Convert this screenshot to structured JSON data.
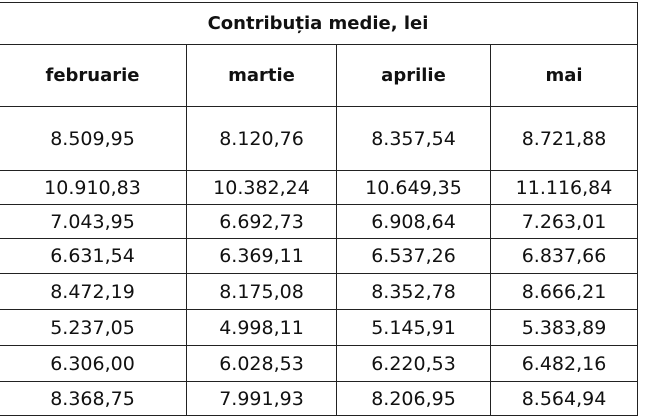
{
  "table": {
    "title": "Contribuția medie, lei",
    "columns": [
      "februarie",
      "martie",
      "aprilie",
      "mai"
    ],
    "rows": [
      [
        "8.509,95",
        "8.120,76",
        "8.357,54",
        "8.721,88"
      ],
      [
        "10.910,83",
        "10.382,24",
        "10.649,35",
        "11.116,84"
      ],
      [
        "7.043,95",
        "6.692,73",
        "6.908,64",
        "7.263,01"
      ],
      [
        "6.631,54",
        "6.369,11",
        "6.537,26",
        "6.837,66"
      ],
      [
        "8.472,19",
        "8.175,08",
        "8.352,78",
        "8.666,21"
      ],
      [
        "5.237,05",
        "4.998,11",
        "5.145,91",
        "5.383,89"
      ],
      [
        "6.306,00",
        "6.028,53",
        "6.220,53",
        "6.482,16"
      ],
      [
        "8.368,75",
        "7.991,93",
        "8.206,95",
        "8.564,94"
      ]
    ]
  }
}
